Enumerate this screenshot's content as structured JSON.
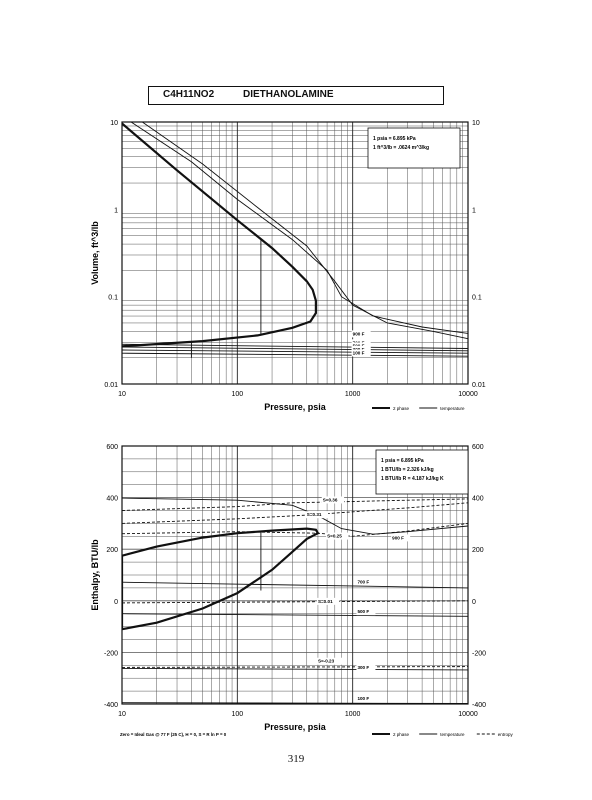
{
  "header": {
    "formula": "C4H11NO2",
    "name": "DIETHANOLAMINE"
  },
  "page_number": "319",
  "chart_data": [
    {
      "type": "line",
      "title": "",
      "xlabel": "Pressure, psia",
      "ylabel": "Volume, ft^3/lb",
      "x_scale": "log",
      "y_scale": "log",
      "xlim": [
        10,
        10000
      ],
      "ylim": [
        0.01,
        10
      ],
      "x_ticks": [
        "10",
        "100",
        "1000",
        "10000"
      ],
      "y_ticks": [
        "0.01",
        "0.1",
        "1",
        "10"
      ],
      "conversions": [
        "1 psia = 6.895 kPa",
        "1 ft^3/lb = .0624 m^3/kg"
      ],
      "legend": [
        "2 phase",
        "temperature"
      ],
      "legend_position": "bottom-right",
      "grid": true,
      "series": [
        {
          "kind": "saturated-vapor",
          "style": "thick",
          "points": [
            [
              10,
              9.6
            ],
            [
              30,
              2.8
            ],
            [
              100,
              0.75
            ],
            [
              200,
              0.36
            ],
            [
              300,
              0.22
            ],
            [
              400,
              0.15
            ],
            [
              450,
              0.12
            ],
            [
              480,
              0.09
            ],
            [
              480,
              0.065
            ],
            [
              430,
              0.052
            ],
            [
              300,
              0.044
            ],
            [
              150,
              0.036
            ],
            [
              50,
              0.031
            ],
            [
              10,
              0.027
            ]
          ]
        },
        {
          "kind": "isotherm",
          "style": "thin",
          "label": "",
          "points": [
            [
              12,
              10
            ],
            [
              40,
              3.5
            ],
            [
              100,
              1.3
            ],
            [
              300,
              0.45
            ],
            [
              600,
              0.2
            ],
            [
              800,
              0.1
            ],
            [
              1500,
              0.06
            ],
            [
              4000,
              0.045
            ],
            [
              10000,
              0.038
            ]
          ]
        },
        {
          "kind": "isotherm",
          "style": "thin",
          "label": "",
          "points": [
            [
              15,
              10
            ],
            [
              50,
              3.3
            ],
            [
              150,
              1.05
            ],
            [
              400,
              0.38
            ],
            [
              700,
              0.15
            ],
            [
              1000,
              0.08
            ],
            [
              2000,
              0.05
            ],
            [
              5000,
              0.04
            ],
            [
              10000,
              0.033
            ]
          ]
        },
        {
          "kind": "isotherm",
          "style": "thin",
          "label": "700 F",
          "points": [
            [
              10,
              0.0285
            ],
            [
              10000,
              0.0255
            ]
          ]
        },
        {
          "kind": "isotherm",
          "style": "thin",
          "label": "500 F",
          "points": [
            [
              10,
              0.0265
            ],
            [
              10000,
              0.024
            ]
          ]
        },
        {
          "kind": "isotherm",
          "style": "thin",
          "label": "300 F",
          "points": [
            [
              10,
              0.0245
            ],
            [
              10000,
              0.0225
            ]
          ]
        },
        {
          "kind": "isotherm",
          "style": "thin",
          "label": "100 F",
          "points": [
            [
              10,
              0.0225
            ],
            [
              10000,
              0.0208
            ]
          ]
        },
        {
          "kind": "tie-line",
          "style": "thin",
          "points": [
            [
              160,
              0.45
            ],
            [
              160,
              0.036
            ]
          ]
        },
        {
          "kind": "tie-line",
          "style": "thin",
          "points": [
            [
              40,
              0.02
            ],
            [
              40,
              0.03
            ]
          ]
        }
      ],
      "annotations": [
        {
          "text": "900 F",
          "at": [
            1000,
            0.036
          ]
        },
        {
          "text": "700 F",
          "at": [
            1000,
            0.0285
          ]
        },
        {
          "text": "500 F",
          "at": [
            1000,
            0.0262
          ]
        },
        {
          "text": "300 F",
          "at": [
            1000,
            0.024
          ]
        },
        {
          "text": "100 F",
          "at": [
            1000,
            0.0218
          ]
        }
      ]
    },
    {
      "type": "line",
      "title": "",
      "xlabel": "Pressure, psia",
      "ylabel": "Enthalpy, BTU/lb",
      "x_scale": "log",
      "y_scale": "linear",
      "xlim": [
        10,
        10000
      ],
      "ylim": [
        -400,
        600
      ],
      "x_ticks": [
        "10",
        "100",
        "1000",
        "10000"
      ],
      "y_ticks": [
        "-400",
        "-200",
        "0",
        "200",
        "400",
        "600"
      ],
      "conversions": [
        "1 psia = 6.895 kPa",
        "1 BTU/lb = 2.326 kJ/kg",
        "1 BTU/lb R = 4.187 kJ/kg K"
      ],
      "legend": [
        "2 phase",
        "temperature",
        "entropy"
      ],
      "legend_position": "bottom-right",
      "reference_note": "Zero = Ideal Gas @ 77 F (25 C), H = 0, S = R ln P = 0",
      "grid": true,
      "series": [
        {
          "kind": "saturation-dome",
          "style": "thick",
          "points": [
            [
              10,
              -110
            ],
            [
              20,
              -85
            ],
            [
              50,
              -30
            ],
            [
              100,
              30
            ],
            [
              200,
              120
            ],
            [
              300,
              190
            ],
            [
              400,
              240
            ],
            [
              500,
              262
            ],
            [
              480,
              275
            ],
            [
              400,
              280
            ],
            [
              200,
              272
            ],
            [
              100,
              262
            ],
            [
              50,
              245
            ],
            [
              20,
              210
            ],
            [
              10,
              175
            ],
            [
              10,
              -110
            ]
          ]
        },
        {
          "kind": "isotherm",
          "style": "thin",
          "label": "900 F",
          "points": [
            [
              10,
              398
            ],
            [
              100,
              390
            ],
            [
              300,
              370
            ],
            [
              500,
              330
            ],
            [
              800,
              280
            ],
            [
              1500,
              258
            ],
            [
              3000,
              268
            ],
            [
              10000,
              290
            ]
          ]
        },
        {
          "kind": "isotherm",
          "style": "thin",
          "label": "700 F",
          "points": [
            [
              10,
              72
            ],
            [
              10000,
              50
            ]
          ]
        },
        {
          "kind": "isotherm",
          "style": "thin",
          "label": "500 F",
          "points": [
            [
              10,
              -50
            ],
            [
              10000,
              -60
            ]
          ]
        },
        {
          "kind": "isotherm",
          "style": "thin",
          "label": "300 F",
          "points": [
            [
              10,
              -262
            ],
            [
              10000,
              -268
            ]
          ]
        },
        {
          "kind": "isotherm",
          "style": "thin",
          "label": "100 F",
          "points": [
            [
              10,
              -395
            ],
            [
              10000,
              -398
            ]
          ]
        },
        {
          "kind": "isentrope",
          "style": "dashed",
          "label": "S=0.36",
          "points": [
            [
              10,
              350
            ],
            [
              100,
              365
            ],
            [
              300,
              380
            ],
            [
              1000,
              385
            ],
            [
              3000,
              390
            ],
            [
              10000,
              395
            ]
          ]
        },
        {
          "kind": "isentrope",
          "style": "dashed",
          "label": "S=0.31",
          "points": [
            [
              10,
              300
            ],
            [
              100,
              318
            ],
            [
              400,
              332
            ],
            [
              1000,
              345
            ],
            [
              3000,
              360
            ],
            [
              10000,
              380
            ]
          ]
        },
        {
          "kind": "isentrope",
          "style": "dashed",
          "label": "S=0.25",
          "points": [
            [
              10,
              260
            ],
            [
              100,
              268
            ],
            [
              500,
              262
            ],
            [
              1000,
              250
            ],
            [
              3000,
              270
            ],
            [
              10000,
              300
            ]
          ]
        },
        {
          "kind": "isentrope",
          "style": "dashed",
          "label": "S=0.01",
          "points": [
            [
              10,
              -8
            ],
            [
              10000,
              0
            ]
          ]
        },
        {
          "kind": "isentrope",
          "style": "dashed",
          "label": "S=-0.23",
          "points": [
            [
              10,
              -258
            ],
            [
              10000,
              -255
            ]
          ]
        },
        {
          "kind": "tie-line",
          "style": "thin",
          "points": [
            [
              160,
              40
            ],
            [
              160,
              268
            ]
          ]
        }
      ],
      "annotations": [
        {
          "text": "S=0.36",
          "at": [
            550,
            385
          ]
        },
        {
          "text": "S=0.31",
          "at": [
            400,
            328
          ]
        },
        {
          "text": "S=0.25",
          "at": [
            600,
            245
          ]
        },
        {
          "text": "900 F",
          "at": [
            2200,
            238
          ]
        },
        {
          "text": "700 F",
          "at": [
            1100,
            68
          ]
        },
        {
          "text": "S=0.01",
          "at": [
            500,
            -8
          ]
        },
        {
          "text": "500 F",
          "at": [
            1100,
            -48
          ]
        },
        {
          "text": "S=-0.23",
          "at": [
            500,
            -240
          ]
        },
        {
          "text": "300 F",
          "at": [
            1100,
            -264
          ]
        },
        {
          "text": "100 F",
          "at": [
            1100,
            -385
          ]
        }
      ]
    }
  ]
}
